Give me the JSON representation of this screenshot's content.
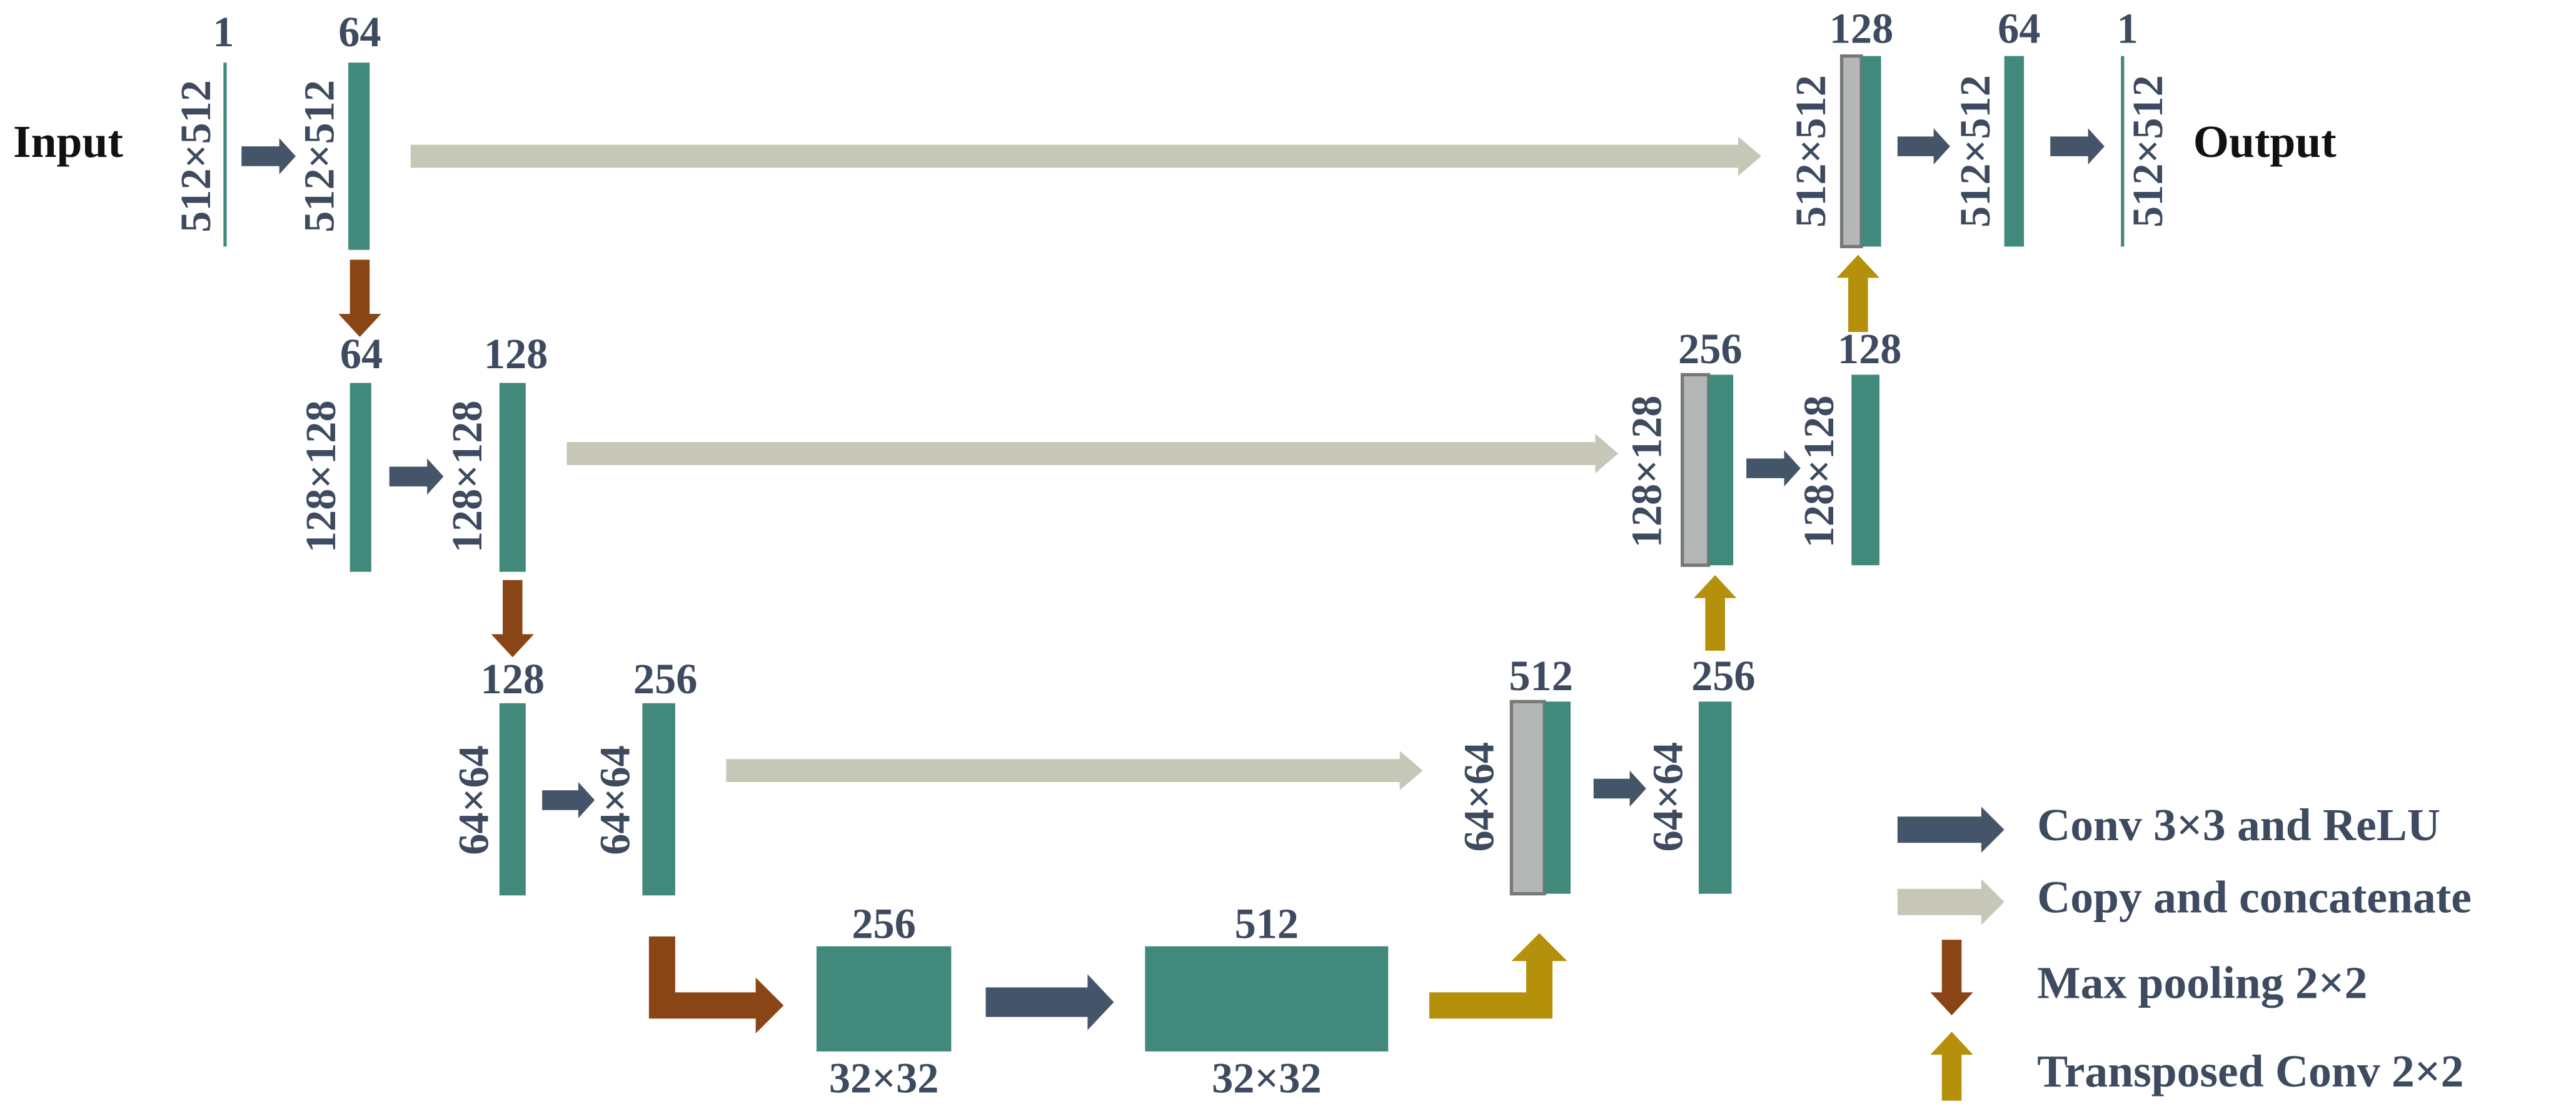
{
  "diagram": {
    "input_label": "Input",
    "output_label": "Output",
    "blocks": [
      {
        "channels": "1",
        "size": "512×512"
      },
      {
        "channels": "64",
        "size": "512×512"
      },
      {
        "channels": "64",
        "size": "128×128"
      },
      {
        "channels": "128",
        "size": "128×128"
      },
      {
        "channels": "128",
        "size": "64×64"
      },
      {
        "channels": "256",
        "size": "64×64"
      },
      {
        "channels": "256",
        "size": "32×32"
      },
      {
        "channels": "512",
        "size": "32×32"
      },
      {
        "channels": "512",
        "size": "64×64"
      },
      {
        "channels": "256",
        "size": "64×64"
      },
      {
        "channels": "256",
        "size": "128×128"
      },
      {
        "channels": "128",
        "size": "128×128"
      },
      {
        "channels": "128",
        "size": "512×512"
      },
      {
        "channels": "64",
        "size": "512×512"
      },
      {
        "channels": "1",
        "size": "512×512"
      }
    ],
    "legend": [
      "Conv 3×3 and ReLU",
      "Copy and concatenate",
      "Max pooling 2×2",
      "Transposed Conv 2×2"
    ]
  }
}
